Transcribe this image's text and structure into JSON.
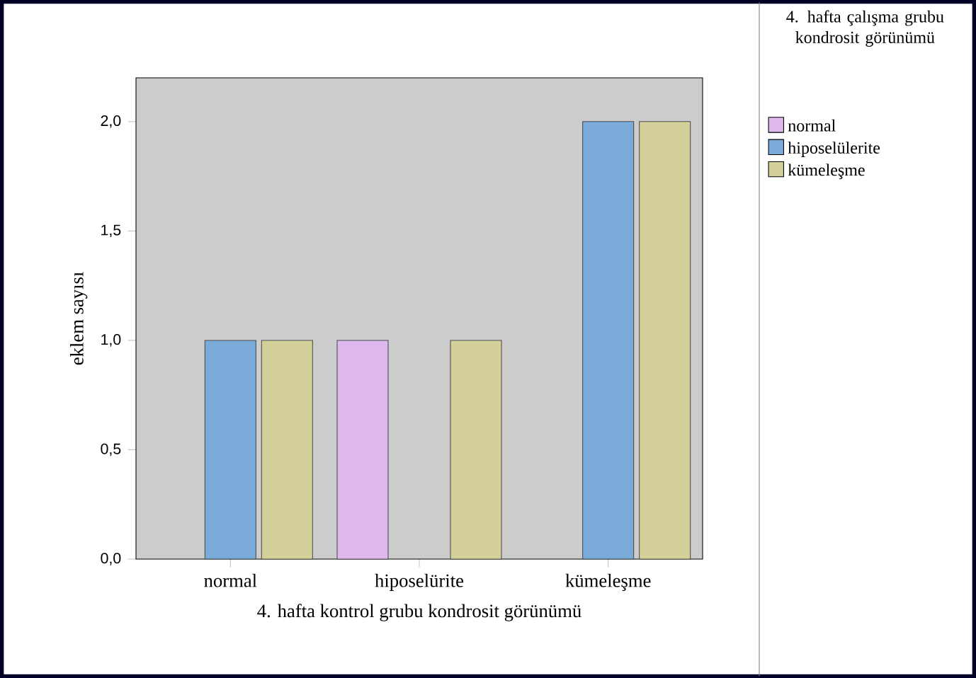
{
  "chart_data": {
    "type": "bar",
    "xlabel": "4. hafta kontrol grubu kondrosit görünümü",
    "ylabel": "eklem sayısı",
    "legend_title": "4. hafta çalışma grubu kondrosit görünümü",
    "categories": [
      "normal",
      "hiposelürite",
      "kümeleşme"
    ],
    "series": [
      {
        "name": "normal",
        "color": "#dfb8f0",
        "values": [
          null,
          1,
          null
        ]
      },
      {
        "name": "hiposelülerite",
        "color": "#7aaad8",
        "values": [
          1,
          null,
          2
        ]
      },
      {
        "name": "kümeleşme",
        "color": "#d4d09a",
        "values": [
          1,
          1,
          2
        ]
      }
    ],
    "ylim": [
      0,
      2.2
    ],
    "yticks": [
      {
        "value": 0,
        "label": "0,0"
      },
      {
        "value": 0.5,
        "label": "0,5"
      },
      {
        "value": 1,
        "label": "1,0"
      },
      {
        "value": 1.5,
        "label": "1,5"
      },
      {
        "value": 2,
        "label": "2,0"
      }
    ],
    "legend": "right"
  }
}
